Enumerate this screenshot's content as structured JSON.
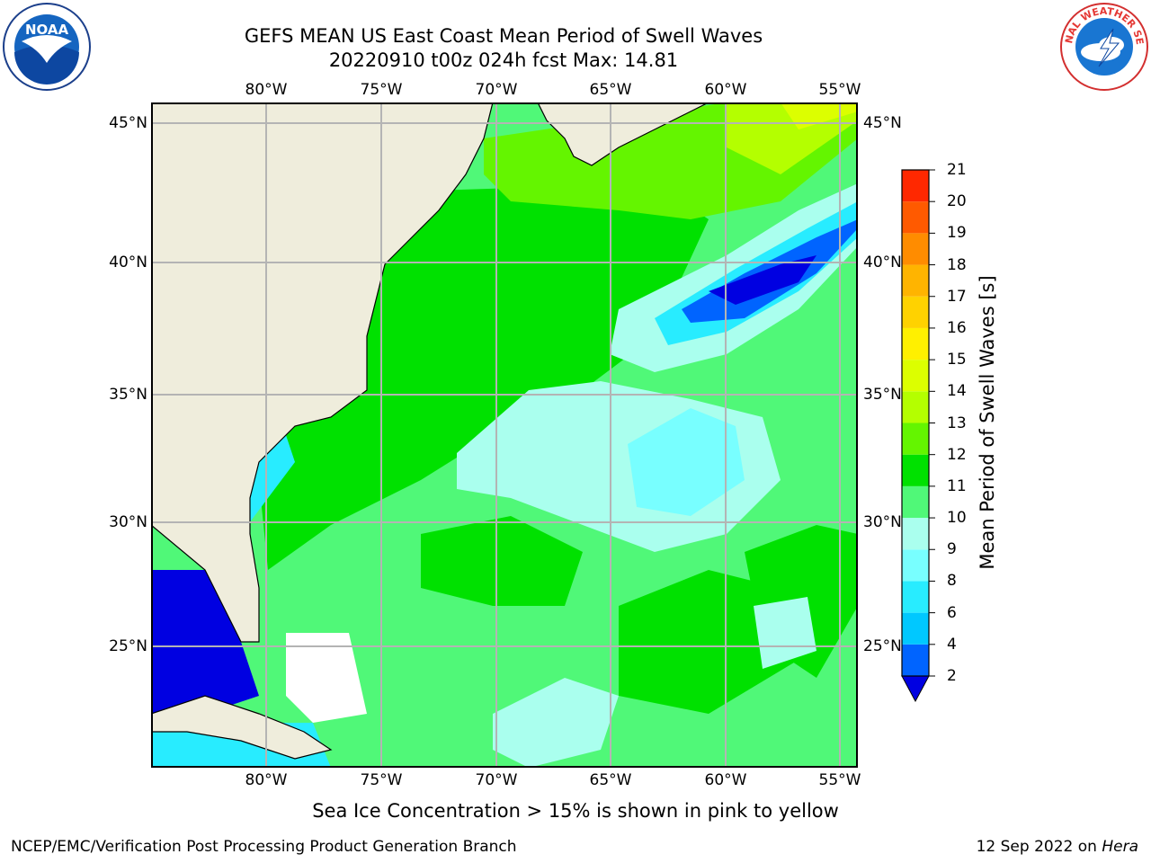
{
  "title": {
    "line1": "GEFS MEAN US East Coast Mean Period of Swell Waves",
    "line2": "20220910 t00z 024h fcst   Max: 14.81"
  },
  "logos": {
    "left": {
      "icon": "noaa-logo-icon",
      "text": "NOAA"
    },
    "right": {
      "icon": "nws-logo-icon",
      "text": "NATIONAL WEATHER SERVICE"
    }
  },
  "map": {
    "lon_labels": [
      "80°W",
      "75°W",
      "70°W",
      "65°W",
      "60°W",
      "55°W"
    ],
    "lat_labels": [
      "45°N",
      "40°N",
      "35°N",
      "30°N",
      "25°N"
    ],
    "land_color": "#efeddc",
    "grid_color": "#b4b4b4"
  },
  "colorbar": {
    "label": "Mean Period of Swell Waves [s]",
    "ticks": [
      "2",
      "4",
      "6",
      "8",
      "9",
      "10",
      "11",
      "12",
      "13",
      "14",
      "15",
      "16",
      "17",
      "18",
      "19",
      "20",
      "21"
    ],
    "colors": [
      "#0064ff",
      "#00c8ff",
      "#28ecff",
      "#78ffff",
      "#aaffee",
      "#50f878",
      "#00e100",
      "#64f500",
      "#b4ff00",
      "#dcff00",
      "#fff000",
      "#ffd200",
      "#ffb400",
      "#ff8c00",
      "#ff5a00",
      "#ff2800"
    ],
    "under_color": "#0000e1",
    "over_color": "#ff0000"
  },
  "footnote": "Sea Ice Concentration > 15% is shown in pink to yellow",
  "credit": "NCEP/EMC/Verification Post Processing Product Generation Branch",
  "stamp": {
    "date": "12 Sep 2022 on ",
    "host": "Hera"
  }
}
